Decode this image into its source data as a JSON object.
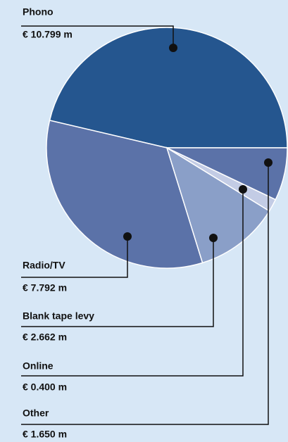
{
  "chart_data": {
    "type": "pie",
    "categories": [
      "Phono",
      "Radio/TV",
      "Blank tape levy",
      "Online",
      "Other"
    ],
    "values": [
      10.799,
      7.792,
      2.662,
      0.4,
      1.65
    ],
    "value_labels": [
      "€ 10.799 m",
      "€ 7.792 m",
      "€ 2.662 m",
      "€ 0.400 m",
      "€ 1.650 m"
    ],
    "colors": [
      "#25568f",
      "#5b72a8",
      "#8a9fc8",
      "#c3cce5",
      "#5b72a8"
    ]
  }
}
